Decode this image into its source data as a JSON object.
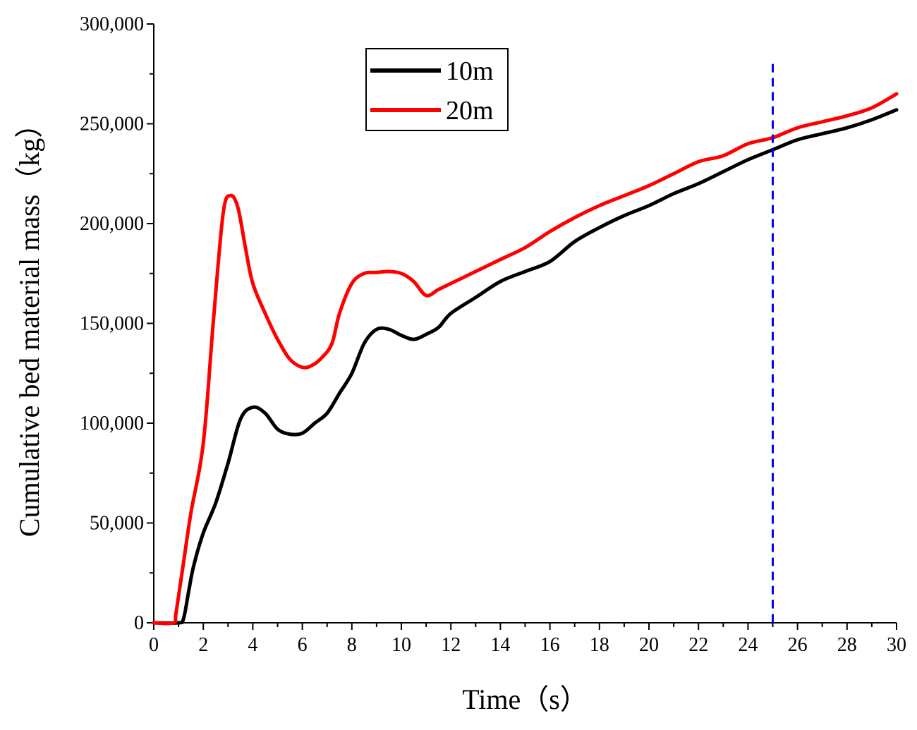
{
  "chart_data": {
    "type": "line",
    "title": "",
    "xlabel": "Time（s）",
    "ylabel": "Cumulative bed material mass（kg）",
    "xlim": [
      0,
      30
    ],
    "ylim": [
      0,
      300000
    ],
    "x_ticks": [
      0,
      2,
      4,
      6,
      8,
      10,
      12,
      14,
      16,
      18,
      20,
      22,
      24,
      26,
      28,
      30
    ],
    "y_ticks": [
      0,
      50000,
      100000,
      150000,
      200000,
      250000,
      300000
    ],
    "y_tick_labels": [
      "0",
      "50,000",
      "100,000",
      "150,000",
      "200,000",
      "250,000",
      "300,000"
    ],
    "grid": false,
    "legend_position": "top-center",
    "series": [
      {
        "name": "10m",
        "color": "#000000",
        "x": [
          0,
          1.0,
          1.2,
          1.4,
          1.6,
          2.0,
          2.5,
          3.0,
          3.5,
          4.0,
          4.5,
          5.0,
          5.5,
          6.0,
          6.5,
          7.0,
          7.5,
          8.0,
          8.5,
          9.0,
          9.5,
          10.0,
          10.5,
          11.0,
          11.5,
          12.0,
          13.0,
          14.0,
          15.0,
          16.0,
          17.0,
          18.0,
          19.0,
          20.0,
          21.0,
          22.0,
          23.0,
          24.0,
          25.0,
          26.0,
          27.0,
          28.0,
          29.0,
          30.0
        ],
        "values": [
          0,
          0,
          2000,
          15000,
          28000,
          45000,
          60000,
          80000,
          102000,
          108000,
          105000,
          97000,
          94500,
          95000,
          100000,
          105000,
          115000,
          125000,
          140000,
          147000,
          147000,
          144000,
          142000,
          144500,
          148000,
          155000,
          163000,
          171000,
          176000,
          181000,
          191000,
          198000,
          204000,
          209000,
          215000,
          220000,
          226000,
          232000,
          237000,
          242000,
          245000,
          248000,
          252000,
          257000
        ]
      },
      {
        "name": "20m",
        "color": "#ff0000",
        "x": [
          0,
          0.8,
          0.9,
          1.2,
          1.5,
          2.0,
          2.4,
          2.8,
          3.1,
          3.4,
          3.7,
          4.0,
          4.5,
          5.0,
          5.5,
          6.0,
          6.4,
          6.8,
          7.2,
          7.5,
          8.0,
          8.5,
          9.0,
          9.5,
          10.0,
          10.5,
          11.0,
          11.5,
          12.0,
          13.0,
          14.0,
          15.0,
          16.0,
          17.0,
          18.0,
          19.0,
          20.0,
          21.0,
          22.0,
          23.0,
          24.0,
          25.0,
          26.0,
          27.0,
          28.0,
          29.0,
          30.0
        ],
        "values": [
          0,
          0,
          5000,
          30000,
          55000,
          90000,
          150000,
          205000,
          214000,
          208000,
          188000,
          170000,
          155000,
          142000,
          132000,
          128000,
          129000,
          133000,
          140000,
          155000,
          170000,
          175000,
          175500,
          176000,
          175000,
          171000,
          164000,
          167000,
          170000,
          176000,
          182000,
          188000,
          196000,
          203000,
          209000,
          214000,
          219000,
          225000,
          231000,
          234000,
          240000,
          243000,
          248000,
          251000,
          254000,
          258000,
          265000
        ]
      }
    ],
    "annotations": [
      {
        "type": "vertical-dashed-line",
        "x": 25,
        "y_from": 0,
        "y_to": 280000,
        "color": "#0000ff"
      }
    ]
  }
}
